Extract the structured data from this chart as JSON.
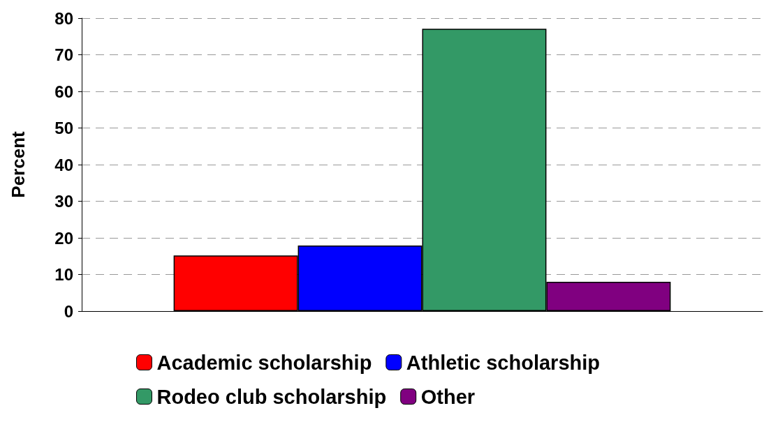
{
  "chart_data": {
    "type": "bar",
    "ylabel": "Percent",
    "categories": [
      null
    ],
    "series": [
      {
        "name": "Academic scholarship",
        "color": "#ff0000",
        "values": [
          15.2
        ]
      },
      {
        "name": "Athletic scholarship",
        "color": "#0000ff",
        "values": [
          17.9
        ]
      },
      {
        "name": "Rodeo club scholarship",
        "color": "#339966",
        "values": [
          77.1
        ]
      },
      {
        "name": "Other",
        "color": "#800080",
        "values": [
          8.0
        ]
      }
    ],
    "ylim": [
      0,
      80
    ],
    "yticks": [
      0,
      10,
      20,
      30,
      40,
      50,
      60,
      70,
      80
    ],
    "grid": "y",
    "legend": "bottom"
  }
}
